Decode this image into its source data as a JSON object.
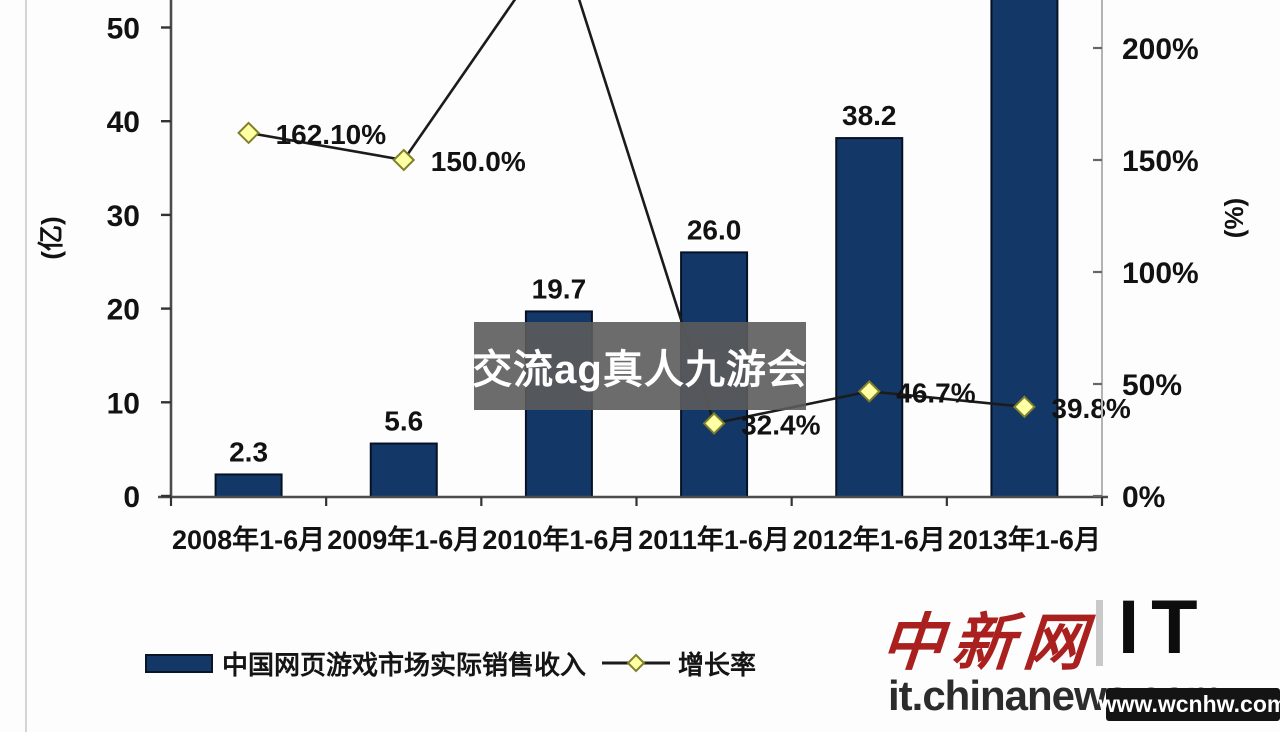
{
  "watermark": {
    "text": "交流ag真人九游会"
  },
  "legend": {
    "series1_label": "中国网页游戏市场实际销售收入",
    "series2_label": "增长率"
  },
  "branding": {
    "logo_cn": "中新网",
    "logo_it": "IT",
    "site_url": "it.chinanews.com",
    "overlay_site": "www.wcnhw.com"
  },
  "chart_data": {
    "type": "bar",
    "subtype": "combo bar + line, dual axis",
    "categories": [
      "2008年1-6月",
      "2009年1-6月",
      "2010年1-6月",
      "2011年1-6月",
      "2012年1-6月",
      "2013年1-6月"
    ],
    "series": [
      {
        "name": "中国网页游戏市场实际销售收入",
        "type": "bar",
        "axis": "left",
        "values": [
          2.3,
          5.6,
          19.7,
          26.0,
          38.2,
          null
        ],
        "labels": [
          "2.3",
          "5.6",
          "19.7",
          "26.0",
          "38.2",
          ""
        ],
        "est_values": [
          2.3,
          5.6,
          19.7,
          26.0,
          38.2,
          53.5
        ],
        "color": "#133868",
        "note": "2013 bar extends above the visible top edge; its value label is cut off"
      },
      {
        "name": "增长率",
        "type": "line",
        "axis": "right",
        "values": [
          162.1,
          150.0,
          null,
          32.4,
          46.7,
          39.8
        ],
        "labels": [
          "162.10%",
          "150.0%",
          "",
          "32.4%",
          "46.7%",
          "39.8%"
        ],
        "est_values": [
          162.1,
          150.0,
          250,
          32.4,
          46.7,
          39.8
        ],
        "color": "#1b1b1b",
        "marker": "diamond",
        "marker_fill": "#ffffa3",
        "marker_stroke": "#80802a",
        "note": "2010 point peaks above the visible top edge; its label is cut off"
      }
    ],
    "left_axis": {
      "label": "(亿)",
      "ticks": [
        "0",
        "10",
        "20",
        "30",
        "40",
        "50"
      ],
      "tick_values": [
        0,
        10,
        20,
        30,
        40,
        50
      ],
      "range_visible": [
        0,
        53
      ]
    },
    "right_axis": {
      "label": "(%)",
      "ticks": [
        "0%",
        "50%",
        "100%",
        "150%",
        "200%"
      ],
      "tick_values": [
        0,
        50,
        100,
        150,
        200
      ],
      "range_visible": [
        0,
        222
      ]
    },
    "grid": false,
    "legend_position": "bottom-left"
  }
}
